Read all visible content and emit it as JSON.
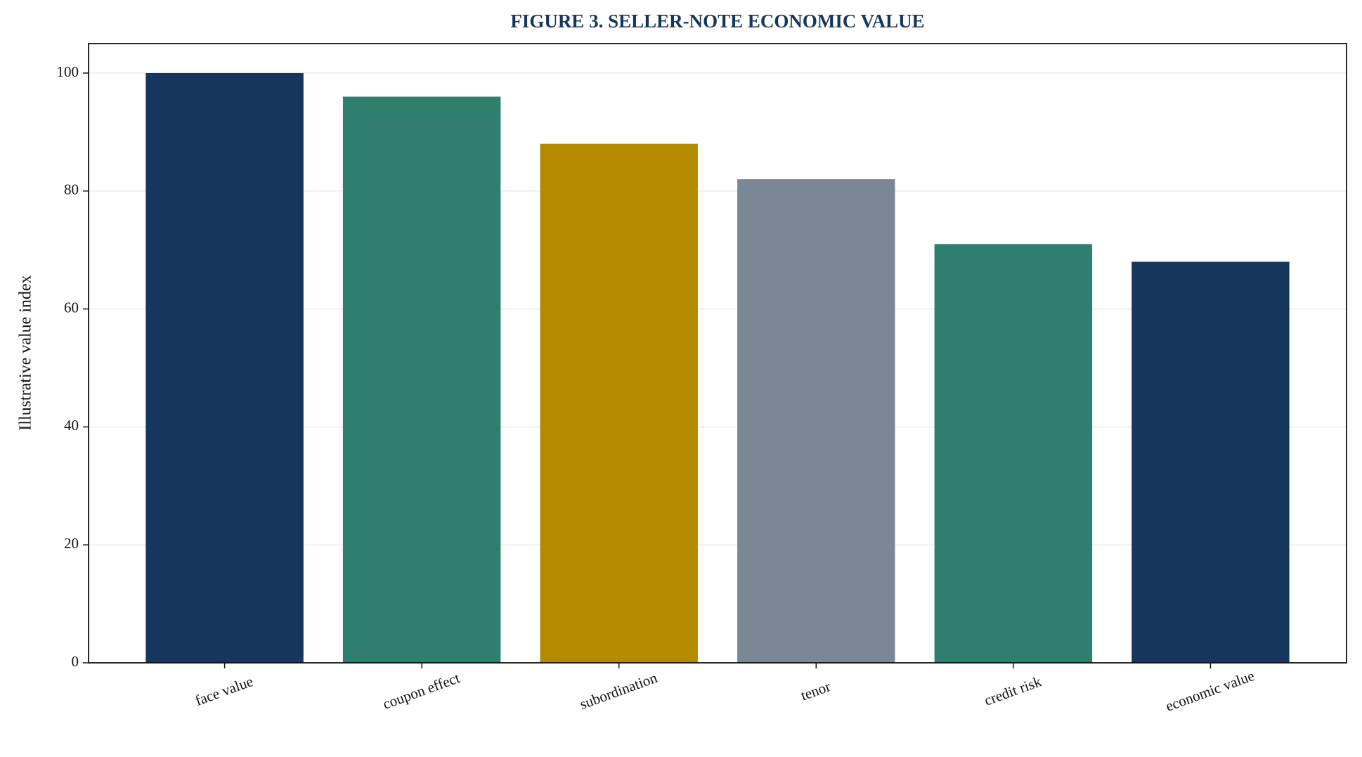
{
  "chart_data": {
    "type": "bar",
    "title": "FIGURE 3. SELLER-NOTE ECONOMIC VALUE",
    "y_label": "Illustrative value index",
    "categories": [
      "face value",
      "coupon effect",
      "subordination",
      "tenor",
      "credit risk",
      "economic value"
    ],
    "values": [
      100,
      96,
      88,
      82,
      71,
      68
    ],
    "colors": [
      "#17365d",
      "#2e7f6e",
      "#b38b00",
      "#7a8797",
      "#2e7f6e",
      "#17365d"
    ],
    "ylim": [
      0,
      105
    ],
    "yticks": [
      0,
      20,
      40,
      60,
      80,
      100
    ],
    "grid": true
  }
}
